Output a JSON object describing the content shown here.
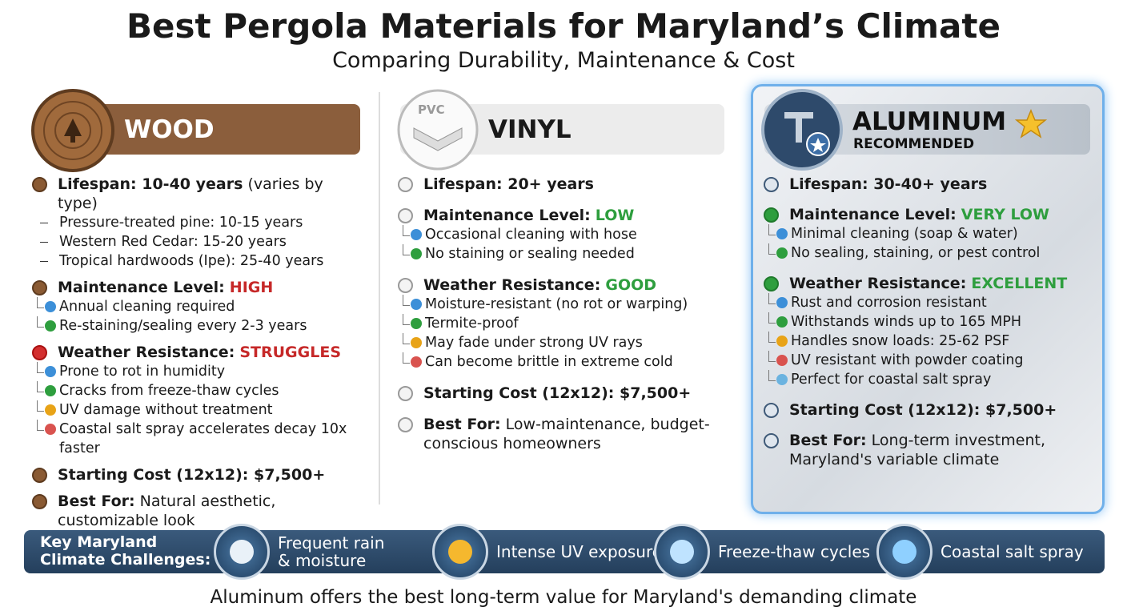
{
  "header": {
    "title": "Best Pergola Materials for Maryland’s Climate",
    "subtitle": "Comparing Durability, Maintenance & Cost"
  },
  "columns": [
    {
      "name": "WOOD",
      "items": [
        {
          "label": "Lifespan: 10-40 years",
          "note": "(varies by type)",
          "details": [
            "Pressure-treated pine: 10-15 years",
            "Western Red Cedar: 15-20 years",
            "Tropical hardwoods (Ipe): 25-40 years"
          ]
        },
        {
          "label": "Maintenance Level:",
          "rating": "HIGH",
          "details": [
            "Annual cleaning required",
            "Re-staining/sealing every 2-3 years"
          ]
        },
        {
          "label": "Weather Resistance:",
          "rating": "STRUGGLES",
          "details": [
            "Prone to rot in humidity",
            "Cracks from freeze-thaw cycles",
            "UV damage without treatment",
            "Coastal salt spray accelerates decay 10x faster"
          ]
        },
        {
          "label": "Starting Cost (12x12): $7,500+"
        },
        {
          "label": "Best For:",
          "note": "Natural aesthetic, customizable look"
        }
      ]
    },
    {
      "name": "VINYL",
      "icon_text": "PVC",
      "items": [
        {
          "label": "Lifespan: 20+ years"
        },
        {
          "label": "Maintenance Level:",
          "rating": "LOW",
          "details": [
            "Occasional cleaning with hose",
            "No staining or sealing needed"
          ]
        },
        {
          "label": "Weather Resistance:",
          "rating": "GOOD",
          "details": [
            "Moisture-resistant (no rot or warping)",
            "Termite-proof",
            "May fade under strong UV rays",
            "Can become brittle in extreme cold"
          ]
        },
        {
          "label": "Starting Cost (12x12): $7,500+"
        },
        {
          "label": "Best For:",
          "note": "Low-maintenance, budget-conscious homeowners"
        }
      ]
    },
    {
      "name": "ALUMINUM",
      "tag": "RECOMMENDED",
      "items": [
        {
          "label": "Lifespan: 30-40+ years"
        },
        {
          "label": "Maintenance Level:",
          "rating": "VERY LOW",
          "details": [
            "Minimal cleaning (soap & water)",
            "No sealing, staining, or pest control"
          ]
        },
        {
          "label": "Weather Resistance:",
          "rating": "EXCELLENT",
          "details": [
            "Rust and corrosion resistant",
            "Withstands winds up to 165 MPH",
            "Handles snow loads: 25-62 PSF",
            "UV resistant with powder coating",
            "Perfect for coastal salt spray"
          ]
        },
        {
          "label": "Starting Cost (12x12): $7,500+"
        },
        {
          "label": "Best For:",
          "note": "Long-term investment, Maryland's variable climate"
        }
      ]
    }
  ],
  "climate": {
    "label": "Key Maryland Climate Challenges:",
    "items": [
      "Frequent rain & moisture",
      "Intense UV exposure",
      "Freeze-thaw cycles",
      "Coastal salt spray"
    ]
  },
  "footer": "Aluminum offers the best long-term value for Maryland's demanding climate"
}
